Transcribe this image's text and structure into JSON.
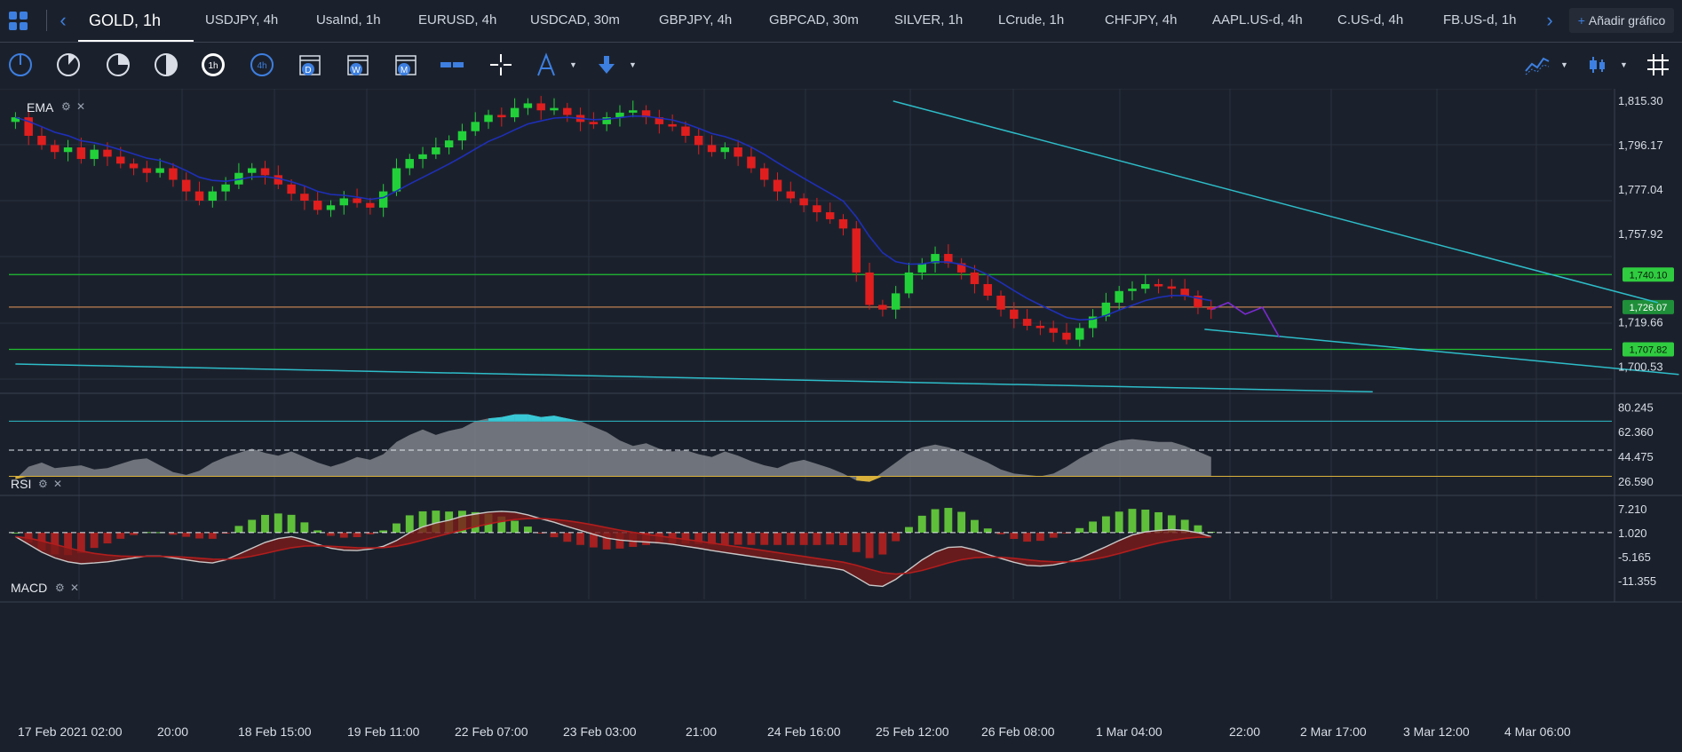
{
  "tabs": {
    "items": [
      "GOLD, 1h",
      "USDJPY, 4h",
      "UsaInd, 1h",
      "EURUSD, 4h",
      "USDCAD, 30m",
      "GBPJPY, 4h",
      "GBPCAD, 30m",
      "SILVER, 1h",
      "LCrude, 1h",
      "CHFJPY, 4h",
      "AAPL.US-d, 4h",
      "C.US-d, 4h",
      "FB.US-d, 1h"
    ],
    "active_index": 0,
    "add_chart_label": "Añadir gráfico",
    "prev_icon": "chevron-left-icon",
    "next_icon": "chevron-right-icon"
  },
  "toolbar": {
    "left_tools": [
      "timeframe-1-icon",
      "timeframe-2-icon",
      "timeframe-3-icon",
      "timeframe-4-icon",
      "timeframe-1h-icon",
      "timeframe-4h-icon",
      "calendar-d-icon",
      "calendar-w-icon",
      "calendar-m-icon",
      "range-icon",
      "crosshair-icon",
      "drawing-tool-icon",
      "arrow-down-icon"
    ],
    "right_tools": [
      "line-chart-type-icon",
      "candle-type-icon",
      "grid-icon"
    ]
  },
  "colors": {
    "bg": "#1b212c",
    "grid": "#2a3140",
    "up": "#22d13a",
    "down": "#e01e1e",
    "ema": "#1e2fb8",
    "trend": "#2dbdc9",
    "hline_green": "#20c030",
    "hline_orange": "#c08050",
    "rsi_fill": "#8c8f96",
    "rsi_over": "#38c8d6",
    "rsi_under": "#d9b13a",
    "macd_line": "#c9c9c9",
    "macd_signal": "#b21d1d",
    "accent": "#3d7fe0"
  },
  "chart_data": [
    {
      "type": "candlestick",
      "panel": "price",
      "indicator_label": "EMA",
      "x_tick_labels": [
        "17 Feb 2021 02:00",
        "20:00",
        "18 Feb 15:00",
        "19 Feb 11:00",
        "22 Feb 07:00",
        "23 Feb 03:00",
        "21:00",
        "24 Feb 16:00",
        "25 Feb 12:00",
        "26 Feb 08:00",
        "1 Mar 04:00",
        "22:00",
        "2 Mar 17:00",
        "3 Mar 12:00",
        "4 Mar 06:00"
      ],
      "y_tick_labels": [
        "1,815.30",
        "1,796.17",
        "1,777.04",
        "1,757.92",
        "1,719.66",
        "1,700.53"
      ],
      "ylim": [
        1690.0,
        1818.0
      ],
      "close_series": [
        1808,
        1800,
        1796,
        1793,
        1795,
        1790,
        1794,
        1791,
        1788,
        1786,
        1784,
        1786,
        1781,
        1776,
        1772,
        1776,
        1779,
        1784,
        1786,
        1783,
        1779,
        1775,
        1772,
        1768,
        1770,
        1773,
        1771,
        1769,
        1776,
        1786,
        1790,
        1792,
        1795,
        1798,
        1802,
        1806,
        1809,
        1808,
        1812,
        1814,
        1811,
        1812,
        1809,
        1806,
        1805,
        1808,
        1810,
        1811,
        1808,
        1805,
        1804,
        1800,
        1796,
        1793,
        1795,
        1791,
        1786,
        1781,
        1776,
        1773,
        1770,
        1767,
        1764,
        1760,
        1741,
        1727,
        1725,
        1732,
        1741,
        1745,
        1749,
        1745,
        1741,
        1736,
        1731,
        1725,
        1721,
        1718,
        1717,
        1715,
        1712,
        1717,
        1722,
        1728,
        1733,
        1734,
        1736,
        1735,
        1734,
        1731,
        1726,
        1725
      ],
      "projection": [
        1728,
        1723,
        1726,
        1713
      ],
      "ema_label": "EMA",
      "hlines": [
        {
          "value": 1740.1,
          "label": "1,740.10",
          "color": "#20c030"
        },
        {
          "value": 1726.07,
          "label": "1,726.07",
          "color": "#c08050"
        },
        {
          "value": 1707.82,
          "label": "1,707.82",
          "color": "#20c030"
        }
      ],
      "trendlines": [
        {
          "from": [
            66.8,
            1815.0
          ],
          "to": [
            125,
            1728.0
          ]
        },
        {
          "from": [
            90.5,
            1716.5
          ],
          "to": [
            126.6,
            1697.0
          ]
        },
        {
          "from": [
            0,
            1701.5
          ],
          "to": [
            103.3,
            1689.5
          ]
        }
      ]
    },
    {
      "type": "area",
      "panel": "rsi",
      "indicator_label": "RSI",
      "y_tick_labels": [
        "80.245",
        "62.360",
        "44.475",
        "26.590"
      ],
      "ylim": [
        20.0,
        87.0
      ],
      "levels": [
        70,
        49,
        30
      ],
      "values": [
        28,
        37,
        40,
        36,
        37,
        38,
        35,
        36,
        39,
        42,
        43,
        38,
        33,
        31,
        34,
        40,
        44,
        47,
        50,
        47,
        45,
        48,
        44,
        40,
        37,
        40,
        44,
        42,
        46,
        55,
        60,
        64,
        60,
        63,
        65,
        70,
        72,
        73,
        75,
        75,
        73,
        74,
        72,
        70,
        66,
        62,
        56,
        52,
        54,
        50,
        48,
        49,
        46,
        44,
        48,
        45,
        41,
        38,
        36,
        40,
        42,
        39,
        36,
        32,
        27,
        26,
        33,
        40,
        47,
        51,
        53,
        51,
        48,
        44,
        40,
        35,
        32,
        31,
        30,
        32,
        37,
        43,
        48,
        53,
        56,
        57,
        56,
        55,
        55,
        52,
        48,
        44
      ]
    },
    {
      "type": "line",
      "panel": "macd",
      "indicator_label": "MACD",
      "y_tick_labels": [
        "7.210",
        "1.020",
        "-5.165",
        "-11.355"
      ],
      "ylim": [
        -15.0,
        9.0
      ],
      "macd_line": [
        0,
        -2,
        -4,
        -5.5,
        -6.5,
        -7,
        -6.8,
        -6.5,
        -6,
        -5.5,
        -5,
        -5,
        -5.5,
        -6,
        -6.5,
        -6.8,
        -6,
        -4.5,
        -3,
        -1.5,
        -0.5,
        0,
        -0.8,
        -2,
        -3,
        -3.5,
        -3.6,
        -3.2,
        -2.5,
        -1,
        1,
        2.5,
        3.5,
        4.2,
        5.2,
        5.8,
        6.3,
        6.5,
        6.3,
        5.6,
        4.6,
        3.7,
        2.6,
        1.6,
        0.6,
        -0.4,
        -0.9,
        -1.2,
        -1.4,
        -1.6,
        -2,
        -2.5,
        -3,
        -3.6,
        -4.1,
        -4.6,
        -5.1,
        -5.6,
        -6.1,
        -6.6,
        -7.1,
        -7.6,
        -8,
        -8.6,
        -10.5,
        -12.5,
        -12.8,
        -11,
        -8.5,
        -6,
        -4,
        -2.8,
        -2.6,
        -3.4,
        -4.6,
        -5.6,
        -6.6,
        -7.4,
        -7.6,
        -7.3,
        -6.6,
        -5.6,
        -4.1,
        -2.6,
        -1,
        0.4,
        1.2,
        1.6,
        1.8,
        1.6,
        1,
        0
      ]
    }
  ]
}
